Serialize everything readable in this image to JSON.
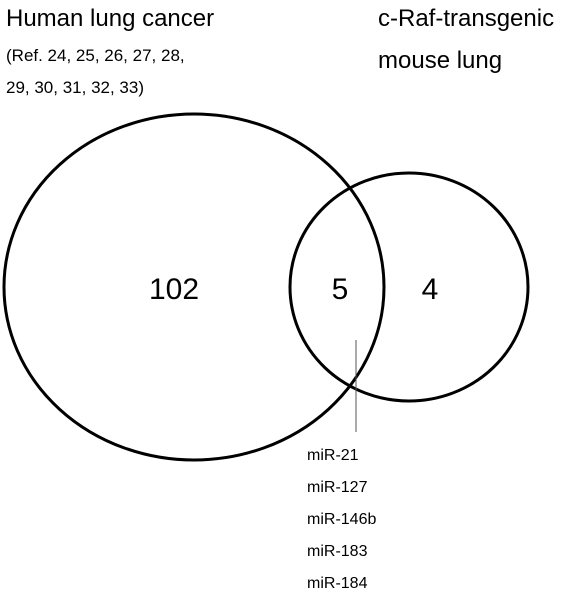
{
  "sets": {
    "human": {
      "title": "Human lung cancer",
      "refs_line1": "(Ref. 24, 25, 26, 27, 28,",
      "refs_line2": "29, 30, 31, 32, 33)",
      "only_count": "102"
    },
    "mouse": {
      "title_line1": "c-Raf-transgenic",
      "title_line2": "mouse lung",
      "only_count": "4"
    }
  },
  "overlap": {
    "count": "5",
    "mirnas": [
      "miR-21",
      "miR-127",
      "miR-146b",
      "miR-183",
      "miR-184"
    ]
  },
  "colors": {
    "stroke": "#000000",
    "background": "#ffffff"
  }
}
